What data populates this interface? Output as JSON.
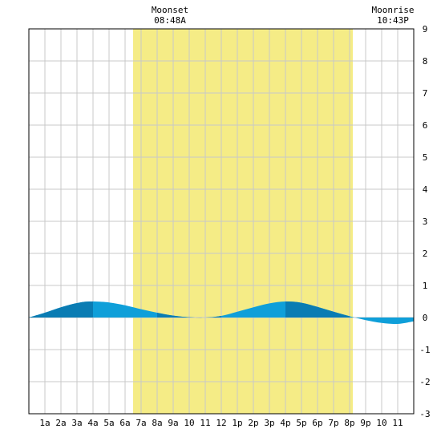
{
  "chart_data": {
    "type": "area",
    "title": "",
    "xlabel": "",
    "ylabel": "",
    "x_ticks": [
      {
        "hour": 1,
        "label": "1a"
      },
      {
        "hour": 2,
        "label": "2a"
      },
      {
        "hour": 3,
        "label": "3a"
      },
      {
        "hour": 4,
        "label": "4a"
      },
      {
        "hour": 5,
        "label": "5a"
      },
      {
        "hour": 6,
        "label": "6a"
      },
      {
        "hour": 7,
        "label": "7a"
      },
      {
        "hour": 8,
        "label": "8a"
      },
      {
        "hour": 9,
        "label": "9a"
      },
      {
        "hour": 10,
        "label": "10"
      },
      {
        "hour": 11,
        "label": "11"
      },
      {
        "hour": 12,
        "label": "12"
      },
      {
        "hour": 13,
        "label": "1p"
      },
      {
        "hour": 14,
        "label": "2p"
      },
      {
        "hour": 15,
        "label": "3p"
      },
      {
        "hour": 16,
        "label": "4p"
      },
      {
        "hour": 17,
        "label": "5p"
      },
      {
        "hour": 18,
        "label": "6p"
      },
      {
        "hour": 19,
        "label": "7p"
      },
      {
        "hour": 20,
        "label": "8p"
      },
      {
        "hour": 21,
        "label": "9p"
      },
      {
        "hour": 22,
        "label": "10"
      },
      {
        "hour": 23,
        "label": "11"
      }
    ],
    "xlim": [
      0,
      24
    ],
    "ylim": [
      -3,
      9
    ],
    "y_ticks": [
      "-3",
      "-2",
      "-1",
      "0",
      "1",
      "2",
      "3",
      "4",
      "5",
      "6",
      "7",
      "8",
      "9"
    ],
    "grid": true,
    "daylight": {
      "start": 6.5,
      "end": 20.2
    },
    "tide_series": {
      "x": [
        0,
        1,
        2,
        3,
        3.8,
        5,
        6,
        7,
        8,
        9,
        10,
        11,
        12,
        13,
        14,
        15,
        16,
        17,
        18,
        19,
        20,
        21,
        22,
        23,
        24
      ],
      "y": [
        0.0,
        0.15,
        0.32,
        0.45,
        0.5,
        0.47,
        0.38,
        0.26,
        0.15,
        0.06,
        0.01,
        0.0,
        0.05,
        0.18,
        0.32,
        0.44,
        0.5,
        0.46,
        0.33,
        0.18,
        0.04,
        -0.08,
        -0.17,
        -0.2,
        -0.12
      ]
    },
    "shading_bands": [
      [
        0,
        4
      ],
      [
        8,
        12
      ],
      [
        16,
        20
      ]
    ],
    "annotations": [
      {
        "label": "Moonset",
        "time": "08:48A",
        "x": 8.8
      },
      {
        "label": "Moonrise",
        "time": "10:43P",
        "x": 22.7
      }
    ],
    "colors": {
      "daylight": "#f5ec86",
      "tide_light": "#0f9fd9",
      "tide_dark": "#0a7cb3",
      "grid": "#c8c8c8",
      "axis": "#000000"
    }
  }
}
